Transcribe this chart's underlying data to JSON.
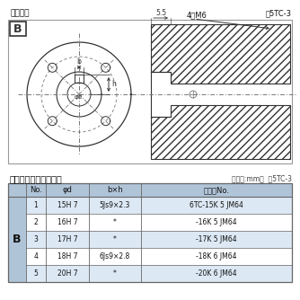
{
  "title_drawing": "軸穴形状",
  "title_fig": "囵5TC-3",
  "title_table": "軸穴形状コード一覧表",
  "title_unit": "（単位:mm）  表5TC-3",
  "label_B_draw": "B",
  "label_b": "b",
  "label_h": "h",
  "label_phid": "φd",
  "label_55": "5.5",
  "label_4M6": "4－M6",
  "table_headers": [
    "No.",
    "φd",
    "b×h",
    "コードNo."
  ],
  "table_rows": [
    [
      "1",
      "15H 7",
      "5Js9×2.3",
      "6TC-15K 5 JM64"
    ],
    [
      "2",
      "16H 7",
      "*",
      "-16K 5 JM64"
    ],
    [
      "3",
      "17H 7",
      "*",
      "-17K 5 JM64"
    ],
    [
      "4",
      "18H 7",
      "6Js9×2.8",
      "-18K 6 JM64"
    ],
    [
      "5",
      "20H 7",
      "*",
      "-20K 6 JM64"
    ]
  ],
  "table_row_colors": [
    "#dce8f4",
    "#ffffff",
    "#dce8f4",
    "#ffffff",
    "#dce8f4"
  ],
  "header_bg": "#b0c4d8",
  "b_cell_bg": "#b0c4d8",
  "border_color": "#666666",
  "text_color": "#111111",
  "line_color": "#333333",
  "cl_color": "#777777"
}
